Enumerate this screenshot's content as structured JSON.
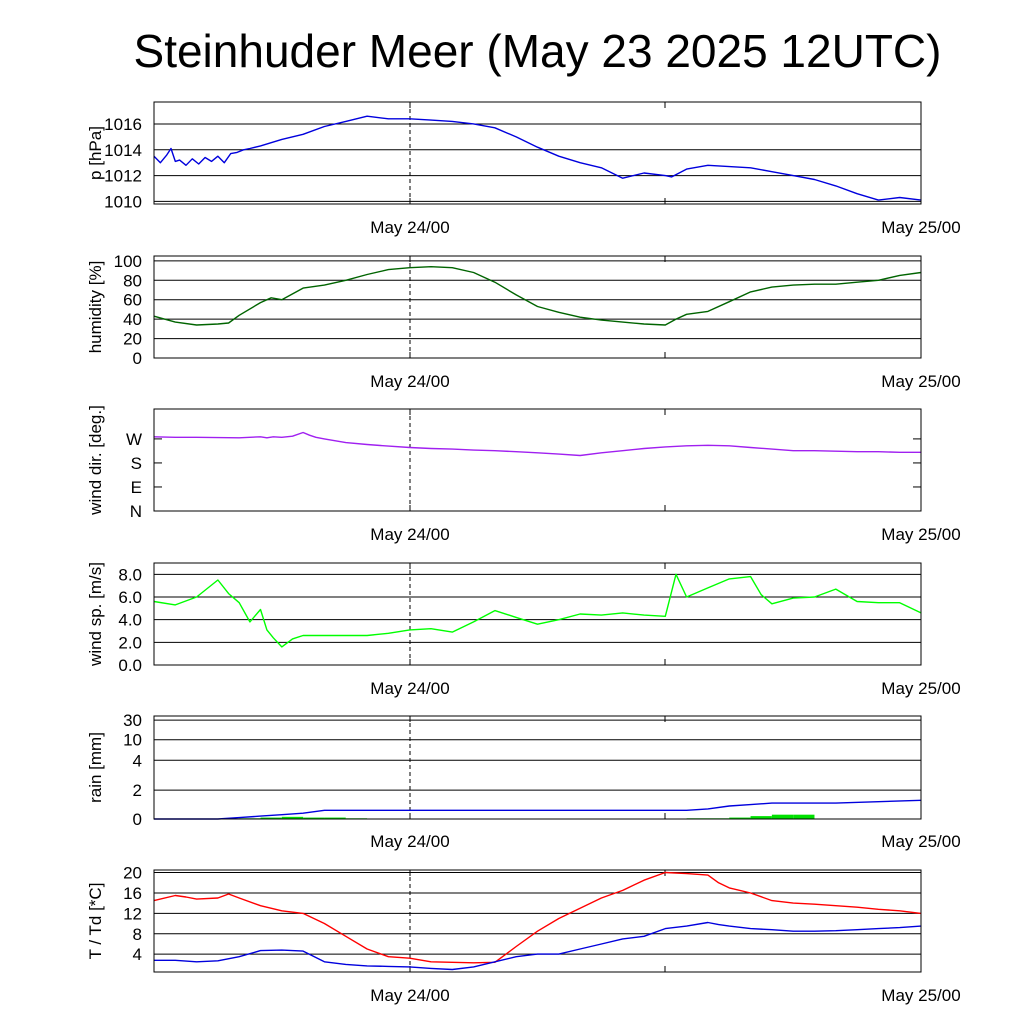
{
  "title": "Steinhuder Meer (May 23 2025 12UTC)",
  "x_tick_labels": [
    "May 24/00",
    "May 25/00"
  ],
  "chart_data": [
    {
      "type": "line",
      "ylabel": "p [hPa]",
      "ylim": [
        1009.8,
        1017.7
      ],
      "yticks": [
        1010,
        1012,
        1014,
        1016
      ],
      "ytick_labels": [
        "1010",
        "1012",
        "1014",
        "1016"
      ],
      "grid": true,
      "x_range_hours": [
        0,
        36
      ],
      "series": [
        {
          "color": "#0000dd",
          "x": [
            0,
            0.3,
            0.6,
            0.8,
            1.0,
            1.2,
            1.5,
            1.8,
            2.1,
            2.4,
            2.7,
            3.0,
            3.3,
            3.6,
            3.9,
            4.2,
            4.5,
            5,
            6,
            7,
            8,
            9,
            10,
            11,
            12,
            13,
            14,
            15,
            16,
            17,
            18,
            19,
            20,
            21,
            22,
            23,
            24,
            24.3,
            25,
            26,
            27,
            28,
            29,
            30,
            31,
            32,
            33,
            34,
            35,
            36
          ],
          "y": [
            1013.5,
            1013.0,
            1013.6,
            1014.1,
            1013.1,
            1013.2,
            1012.8,
            1013.3,
            1012.9,
            1013.4,
            1013.1,
            1013.5,
            1013.0,
            1013.7,
            1013.8,
            1014.0,
            1014.1,
            1014.3,
            1014.8,
            1015.2,
            1015.8,
            1016.2,
            1016.6,
            1016.4,
            1016.4,
            1016.3,
            1016.2,
            1016.0,
            1015.7,
            1015.0,
            1014.2,
            1013.5,
            1013.0,
            1012.6,
            1011.8,
            1012.2,
            1012.0,
            1011.9,
            1012.5,
            1012.8,
            1012.7,
            1012.6,
            1012.3,
            1012.0,
            1011.7,
            1011.2,
            1010.6,
            1010.1,
            1010.3,
            1010.1
          ]
        }
      ]
    },
    {
      "type": "line",
      "ylabel": "humidity [%]",
      "ylim": [
        0,
        105
      ],
      "yticks": [
        0,
        20,
        40,
        60,
        80,
        100
      ],
      "ytick_labels": [
        "0",
        "20",
        "40",
        "60",
        "80",
        "100"
      ],
      "grid": true,
      "x_range_hours": [
        0,
        36
      ],
      "series": [
        {
          "color": "#006400",
          "x": [
            0,
            1,
            2,
            3,
            3.5,
            4,
            5,
            5.5,
            6,
            7,
            8,
            9,
            10,
            11,
            12,
            13,
            14,
            15,
            16,
            17,
            18,
            19,
            20,
            21,
            22,
            23,
            24,
            24.5,
            25,
            26,
            27,
            28,
            29,
            30,
            31,
            32,
            33,
            34,
            35,
            36
          ],
          "y": [
            43,
            37,
            34,
            35,
            36,
            44,
            57,
            62,
            60,
            72,
            75,
            80,
            86,
            91,
            93,
            94,
            93,
            88,
            78,
            65,
            53,
            47,
            42,
            39,
            37,
            35,
            34,
            40,
            45,
            48,
            58,
            68,
            73,
            75,
            76,
            76,
            78,
            80,
            85,
            88
          ]
        }
      ]
    },
    {
      "type": "line",
      "ylabel": "wind dir. [deg.]",
      "ylim": [
        0,
        382
      ],
      "yticks": [
        0,
        90,
        180,
        270
      ],
      "ytick_labels": [
        "N",
        "E",
        "S",
        "W"
      ],
      "grid": false,
      "x_range_hours": [
        0,
        36
      ],
      "series": [
        {
          "color": "#a020f0",
          "x": [
            0,
            1,
            2,
            3,
            4,
            5,
            5.3,
            5.6,
            6,
            6.5,
            7,
            7.3,
            7.6,
            8,
            9,
            10,
            11,
            12,
            13,
            14,
            15,
            16,
            17,
            18,
            19,
            20,
            21,
            22,
            23,
            24,
            25,
            26,
            27,
            28,
            29,
            30,
            31,
            32,
            33,
            34,
            35,
            36
          ],
          "y": [
            278,
            276,
            276,
            275,
            274,
            278,
            274,
            278,
            276,
            280,
            294,
            284,
            276,
            270,
            256,
            249,
            243,
            238,
            234,
            232,
            228,
            226,
            222,
            218,
            213,
            208,
            218,
            226,
            234,
            240,
            244,
            246,
            244,
            238,
            232,
            226,
            226,
            224,
            222,
            222,
            220,
            220
          ]
        }
      ]
    },
    {
      "type": "line",
      "ylabel": "wind sp. [m/s]",
      "ylim": [
        0,
        9
      ],
      "yticks": [
        0,
        2,
        4,
        6,
        8
      ],
      "ytick_labels": [
        "0.0",
        "2.0",
        "4.0",
        "6.0",
        "8.0"
      ],
      "grid": true,
      "x_range_hours": [
        0,
        36
      ],
      "series": [
        {
          "color": "#00ff00",
          "x": [
            0,
            1,
            2,
            3,
            3.5,
            4,
            4.5,
            5,
            5.3,
            5.6,
            6,
            6.5,
            7,
            8,
            9,
            10,
            11,
            12,
            13,
            14,
            15,
            16,
            17,
            18,
            19,
            20,
            21,
            22,
            23,
            24,
            24.5,
            25,
            26,
            27,
            28,
            28.5,
            29,
            30,
            31,
            32,
            33,
            34,
            35,
            36
          ],
          "y": [
            5.6,
            5.3,
            6.0,
            7.5,
            6.3,
            5.5,
            3.8,
            4.9,
            3.1,
            2.4,
            1.6,
            2.3,
            2.6,
            2.6,
            2.6,
            2.6,
            2.8,
            3.1,
            3.2,
            2.9,
            3.8,
            4.8,
            4.2,
            3.6,
            4.0,
            4.5,
            4.4,
            4.6,
            4.4,
            4.3,
            8.0,
            6.0,
            6.8,
            7.6,
            7.8,
            6.2,
            5.4,
            5.9,
            6.0,
            6.7,
            5.6,
            5.5,
            5.5,
            4.6
          ]
        }
      ]
    },
    {
      "type": "line",
      "ylabel": "rain [mm]",
      "ylim": [
        0,
        30
      ],
      "yticks": [
        0,
        2,
        4,
        10,
        30
      ],
      "ytick_labels": [
        "0",
        "2",
        "4",
        "10",
        "30"
      ],
      "grid": true,
      "x_range_hours": [
        0,
        36
      ],
      "series": [
        {
          "color": "#0000dd",
          "x": [
            0,
            3,
            4,
            5,
            6,
            7,
            8,
            10,
            14,
            18,
            22,
            24,
            25,
            26,
            27,
            28,
            29,
            30,
            32,
            34,
            36
          ],
          "y": [
            0,
            0,
            0.1,
            0.2,
            0.3,
            0.4,
            0.6,
            0.6,
            0.6,
            0.6,
            0.6,
            0.6,
            0.6,
            0.7,
            0.9,
            1.0,
            1.1,
            1.1,
            1.1,
            1.2,
            1.3
          ]
        }
      ],
      "bars": {
        "color": "#00e000",
        "x": [
          4.5,
          5.5,
          6.5,
          7.5,
          8.5,
          9.5,
          25.5,
          26.5,
          27.5,
          28.5,
          29.5,
          30.5
        ],
        "values": [
          0.05,
          0.1,
          0.15,
          0.1,
          0.1,
          0.05,
          0.05,
          0.05,
          0.1,
          0.2,
          0.3,
          0.3
        ]
      }
    },
    {
      "type": "line",
      "ylabel": "T / Td [*C]",
      "ylim": [
        0.5,
        20.5
      ],
      "yticks": [
        4,
        8,
        12,
        16,
        20
      ],
      "ytick_labels": [
        "4",
        "8",
        "12",
        "16",
        "20"
      ],
      "grid": true,
      "x_range_hours": [
        0,
        36
      ],
      "series": [
        {
          "color": "#ff0000",
          "x": [
            0,
            1,
            1.5,
            2,
            3,
            3.5,
            4,
            5,
            6,
            7,
            8,
            9,
            10,
            11,
            12,
            13,
            14,
            15,
            16,
            17,
            18,
            19,
            20,
            21,
            22,
            23,
            24,
            25,
            26,
            26.5,
            27,
            28,
            29,
            30,
            31,
            32,
            33,
            34,
            35,
            36
          ],
          "y": [
            14.5,
            15.5,
            15.2,
            14.8,
            15.0,
            15.8,
            15.0,
            13.5,
            12.5,
            12.0,
            10.0,
            7.5,
            5.0,
            3.5,
            3.2,
            2.5,
            2.4,
            2.3,
            2.4,
            5.5,
            8.5,
            11.0,
            13.0,
            15.0,
            16.5,
            18.5,
            20.0,
            19.8,
            19.5,
            18.0,
            17.0,
            16.0,
            14.5,
            14.0,
            13.8,
            13.5,
            13.2,
            12.8,
            12.5,
            12.0
          ]
        },
        {
          "color": "#0000dd",
          "x": [
            0,
            1,
            2,
            3,
            4,
            5,
            6,
            7,
            8,
            9,
            10,
            11,
            12,
            13,
            14,
            15,
            16,
            17,
            18,
            19,
            20,
            21,
            22,
            23,
            24,
            25,
            26,
            26.5,
            27,
            28,
            29,
            30,
            31,
            32,
            33,
            34,
            35,
            36
          ],
          "y": [
            2.8,
            2.8,
            2.5,
            2.7,
            3.5,
            4.7,
            4.8,
            4.6,
            2.5,
            2.0,
            1.7,
            1.6,
            1.5,
            1.2,
            1.0,
            1.5,
            2.5,
            3.5,
            4.0,
            4.0,
            5.0,
            6.0,
            7.0,
            7.5,
            9.0,
            9.5,
            10.2,
            9.8,
            9.5,
            9.0,
            8.8,
            8.5,
            8.5,
            8.6,
            8.8,
            9.0,
            9.2,
            9.5
          ]
        }
      ]
    }
  ]
}
